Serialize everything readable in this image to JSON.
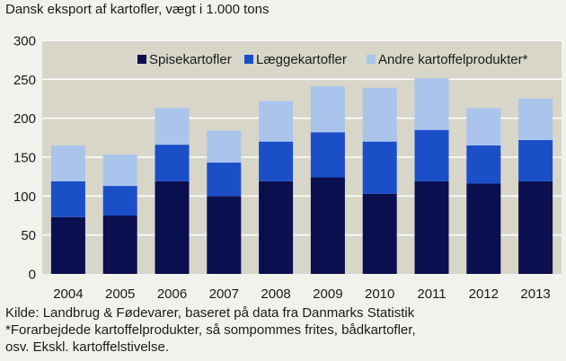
{
  "chart_data": {
    "type": "bar",
    "stacked": true,
    "title": "Dansk eksport af kartofler, vægt i 1.000 tons",
    "xlabel": "",
    "ylabel": "",
    "categories": [
      "2004",
      "2005",
      "2006",
      "2007",
      "2008",
      "2009",
      "2010",
      "2011",
      "2012",
      "2013"
    ],
    "ylim": [
      0,
      300
    ],
    "yticks": [
      0,
      50,
      100,
      150,
      200,
      250,
      300
    ],
    "grid": true,
    "legend_position": "top-right",
    "series": [
      {
        "name": "Spisekartofler",
        "color": "#0a0f4f",
        "values": [
          73,
          75,
          119,
          100,
          119,
          124,
          103,
          119,
          116,
          119
        ]
      },
      {
        "name": "Læggekartofler",
        "color": "#1b4fc8",
        "values": [
          46,
          38,
          47,
          43,
          51,
          58,
          67,
          66,
          49,
          53
        ]
      },
      {
        "name": "Andre kartoffelprodukter*",
        "color": "#aac4ec",
        "values": [
          46,
          40,
          47,
          41,
          52,
          59,
          69,
          66,
          48,
          53
        ]
      }
    ]
  },
  "source": {
    "line1": "Kilde:  Landbrug & Fødevarer, baseret på data fra Danmarks Statistik",
    "line2": "*Forarbejdede kartoffelprodukter, så sompommes frites, bådkartofler,",
    "line3": "osv. Ekskl. kartoffelstivelse."
  },
  "colors": {
    "panel": "#d7d6c9",
    "grid": "#ffffff",
    "background": "#f2f2ed"
  }
}
